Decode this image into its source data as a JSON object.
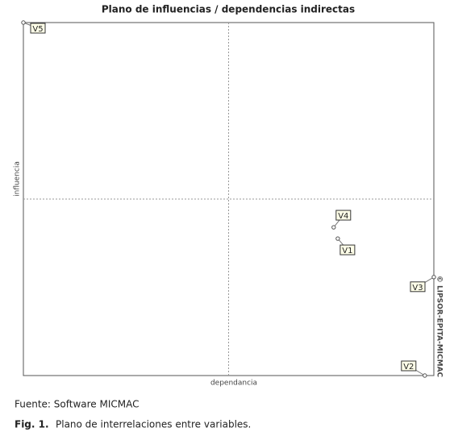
{
  "chart_data": {
    "type": "scatter",
    "title": "Plano de influencias / dependencias indirectas",
    "x_label": "dependancia",
    "y_label": "influencia",
    "watermark": "© LIPSOR-EPITA-MICMAC",
    "labels": [
      "V5",
      "V4",
      "V1",
      "V3",
      "V2"
    ],
    "x": [
      0,
      75.6,
      76.6,
      100,
      97.8
    ],
    "values": [
      100,
      42.0,
      38.8,
      27.9,
      0
    ],
    "xlim": [
      0,
      100
    ],
    "ylim": [
      0,
      100
    ],
    "midlines": {
      "x": 50,
      "y": 50
    },
    "color": "#555555"
  },
  "caption": {
    "source": "Fuente: Software MICMAC",
    "figure_label": "Fig. 1.",
    "text": "Plano de interrelaciones entre variables."
  }
}
